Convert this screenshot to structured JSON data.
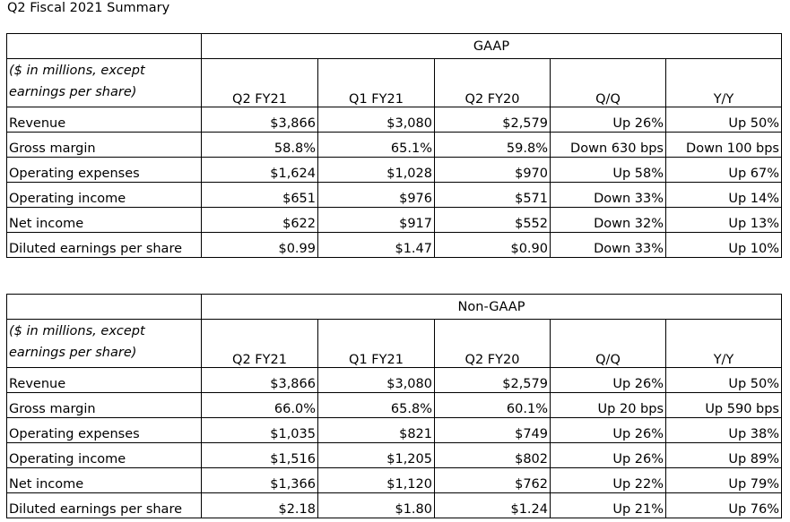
{
  "page_title": "Q2 Fiscal 2021 Summary",
  "tables": [
    {
      "section": "GAAP",
      "unit_label": "($ in millions, except earnings per share)",
      "columns": [
        "Q2 FY21",
        "Q1 FY21",
        "Q2 FY20",
        "Q/Q",
        "Y/Y"
      ],
      "rows": [
        {
          "label": "Revenue",
          "values": [
            "$3,866",
            "$3,080",
            "$2,579",
            "Up 26%",
            "Up 50%"
          ]
        },
        {
          "label": "Gross margin",
          "values": [
            "58.8%",
            "65.1%",
            "59.8%",
            "Down 630 bps",
            "Down 100 bps"
          ]
        },
        {
          "label": "Operating expenses",
          "values": [
            "$1,624",
            "$1,028",
            "$970",
            "Up 58%",
            "Up 67%"
          ]
        },
        {
          "label": "Operating income",
          "values": [
            "$651",
            "$976",
            "$571",
            "Down 33%",
            "Up 14%"
          ]
        },
        {
          "label": "Net income",
          "values": [
            "$622",
            "$917",
            "$552",
            "Down 32%",
            "Up 13%"
          ]
        },
        {
          "label": "Diluted earnings per share",
          "values": [
            "$0.99",
            "$1.47",
            "$0.90",
            "Down 33%",
            "Up 10%"
          ]
        }
      ]
    },
    {
      "section": "Non-GAAP",
      "unit_label": "($ in millions, except earnings per share)",
      "columns": [
        "Q2 FY21",
        "Q1 FY21",
        "Q2 FY20",
        "Q/Q",
        "Y/Y"
      ],
      "rows": [
        {
          "label": "Revenue",
          "values": [
            "$3,866",
            "$3,080",
            "$2,579",
            "Up 26%",
            "Up 50%"
          ]
        },
        {
          "label": "Gross margin",
          "values": [
            "66.0%",
            "65.8%",
            "60.1%",
            "Up 20 bps",
            "Up 590 bps"
          ]
        },
        {
          "label": "Operating expenses",
          "values": [
            "$1,035",
            "$821",
            "$749",
            "Up 26%",
            "Up 38%"
          ]
        },
        {
          "label": "Operating income",
          "values": [
            "$1,516",
            "$1,205",
            "$802",
            "Up 26%",
            "Up 89%"
          ]
        },
        {
          "label": "Net income",
          "values": [
            "$1,366",
            "$1,120",
            "$762",
            "Up 22%",
            "Up 79%"
          ]
        },
        {
          "label": "Diluted earnings per share",
          "values": [
            "$2.18",
            "$1.80",
            "$1.24",
            "Up 21%",
            "Up 76%"
          ]
        }
      ]
    }
  ]
}
